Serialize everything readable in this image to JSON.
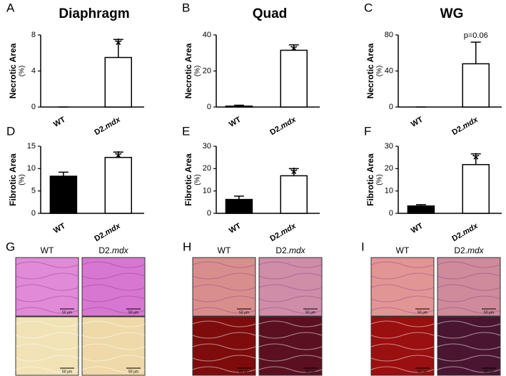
{
  "chart_data": [
    {
      "type": "bar",
      "panel": "A",
      "title": "Diaphragm",
      "ylabel": "Necrotic Area",
      "ylabel_unit": "(%)",
      "categories": [
        "WT",
        "D2.mdx"
      ],
      "values": [
        0,
        5.5
      ],
      "errors": [
        0,
        2.0
      ],
      "colors": [
        "#000000",
        "#ffffff"
      ],
      "ylim": [
        0,
        8
      ],
      "yticks": [
        0,
        4,
        8
      ],
      "annotation": "*"
    },
    {
      "type": "bar",
      "panel": "B",
      "title": "Quad",
      "ylabel": "Necrotic Area",
      "ylabel_unit": "(%)",
      "categories": [
        "WT",
        "D2.mdx"
      ],
      "values": [
        0.5,
        31.5
      ],
      "errors": [
        0.5,
        3.0
      ],
      "colors": [
        "#000000",
        "#ffffff"
      ],
      "ylim": [
        0,
        40
      ],
      "yticks": [
        0,
        20,
        40
      ],
      "annotation": "*"
    },
    {
      "type": "bar",
      "panel": "C",
      "title": "WG",
      "ylabel": "Necrotic Area",
      "ylabel_unit": "(%)",
      "categories": [
        "WT",
        "D2.mdx"
      ],
      "values": [
        0,
        48
      ],
      "errors": [
        0,
        24
      ],
      "colors": [
        "#000000",
        "#ffffff"
      ],
      "ylim": [
        0,
        80
      ],
      "yticks": [
        0,
        40,
        80
      ],
      "annotation": "p=0.06"
    },
    {
      "type": "bar",
      "panel": "D",
      "ylabel": "Fibrotic Area",
      "ylabel_unit": "(%)",
      "categories": [
        "WT",
        "D2.mdx"
      ],
      "values": [
        8.3,
        12.5
      ],
      "errors": [
        0.9,
        1.2
      ],
      "colors": [
        "#000000",
        "#ffffff"
      ],
      "ylim": [
        0,
        15
      ],
      "yticks": [
        0,
        5,
        10,
        15
      ],
      "annotation": "*"
    },
    {
      "type": "bar",
      "panel": "E",
      "ylabel": "Fibrotic Area",
      "ylabel_unit": "(%)",
      "categories": [
        "WT",
        "D2.mdx"
      ],
      "values": [
        6.2,
        16.8
      ],
      "errors": [
        1.5,
        3.2
      ],
      "colors": [
        "#000000",
        "#ffffff"
      ],
      "ylim": [
        0,
        30
      ],
      "yticks": [
        0,
        10,
        20,
        30
      ],
      "annotation": "*"
    },
    {
      "type": "bar",
      "panel": "F",
      "ylabel": "Fibrotic Area",
      "ylabel_unit": "(%)",
      "categories": [
        "WT",
        "D2.mdx"
      ],
      "values": [
        3.3,
        21.8
      ],
      "errors": [
        0.6,
        4.8
      ],
      "colors": [
        "#000000",
        "#ffffff"
      ],
      "ylim": [
        0,
        30
      ],
      "yticks": [
        0,
        10,
        20,
        30
      ],
      "annotation": "*"
    }
  ],
  "micrographs": [
    {
      "panel": "G",
      "columns": [
        "WT",
        "D2.mdx"
      ],
      "scale_bar": "50 μm"
    },
    {
      "panel": "H",
      "columns": [
        "WT",
        "D2.mdx"
      ],
      "scale_bar": "50 μm"
    },
    {
      "panel": "I",
      "columns": [
        "WT",
        "D2.mdx"
      ],
      "scale_bar": "50 μm"
    }
  ]
}
